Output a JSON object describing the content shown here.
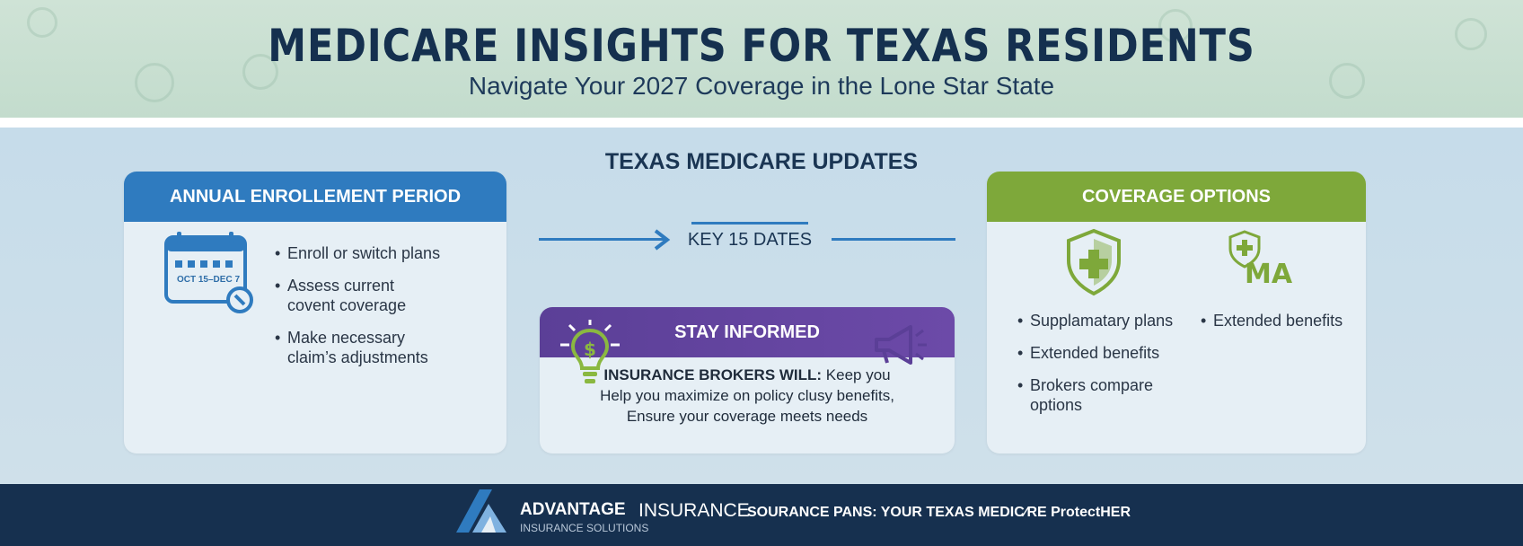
{
  "header": {
    "title": "MEDICARE INSIGHTS FOR TEXAS RESIDENTS",
    "subtitle": "Navigate Your 2027 Coverage in the Lone Star State"
  },
  "section": {
    "title": "TEXAS MEDICARE UPDATES"
  },
  "enrollment": {
    "heading": "ANNUAL ENROLLEMENT PERIOD",
    "calendar_label": "OCT 15–DEC 7",
    "calendar_icon": "calendar-icon",
    "bullets": [
      {
        "line1": "Enroll or switch plans",
        "line2": ""
      },
      {
        "line1": "Assess current",
        "line2": "covent coverage"
      },
      {
        "line1": "Make necessary",
        "line2": "claim’s adjustments"
      }
    ]
  },
  "timeline": {
    "key_dates": "KEY 15 DATES"
  },
  "stay_informed": {
    "heading": "STAY INFORMED",
    "brokers_label": "INSURANCE BROKERS WILL:",
    "brokers_rest": " Keep you",
    "line2": "Help you maximize on policy clusy benefits,",
    "line3": "Ensure your coverage meets needs",
    "icon_left": "lightbulb-dollar-icon",
    "icon_right": "megaphone-icon"
  },
  "coverage": {
    "heading": "COVERAGE OPTIONS",
    "icon_shield": "shield-plus-icon",
    "icon_ma": "shield-ma-icon",
    "ma_text": "MA",
    "bullets_col1": [
      "Supplamatary plans",
      "Extended benefits",
      "Brokers compare options"
    ],
    "bullets_col2": [
      "Extended benefits"
    ]
  },
  "footer": {
    "brand_bold": "ADVANTAGE",
    "brand_light": "INSURANCE",
    "brand_sub": "INSURANCE SOLUTIONS",
    "tagline": "SOURANCE PANS: YOUR TEXAS MEDIC⁄RE ProtectHER",
    "logo_icon": "advantage-logo-icon"
  },
  "colors": {
    "blue": "#2f7bbf",
    "green": "#7ea83a",
    "purple": "#5b3f97",
    "navy": "#16304f"
  }
}
